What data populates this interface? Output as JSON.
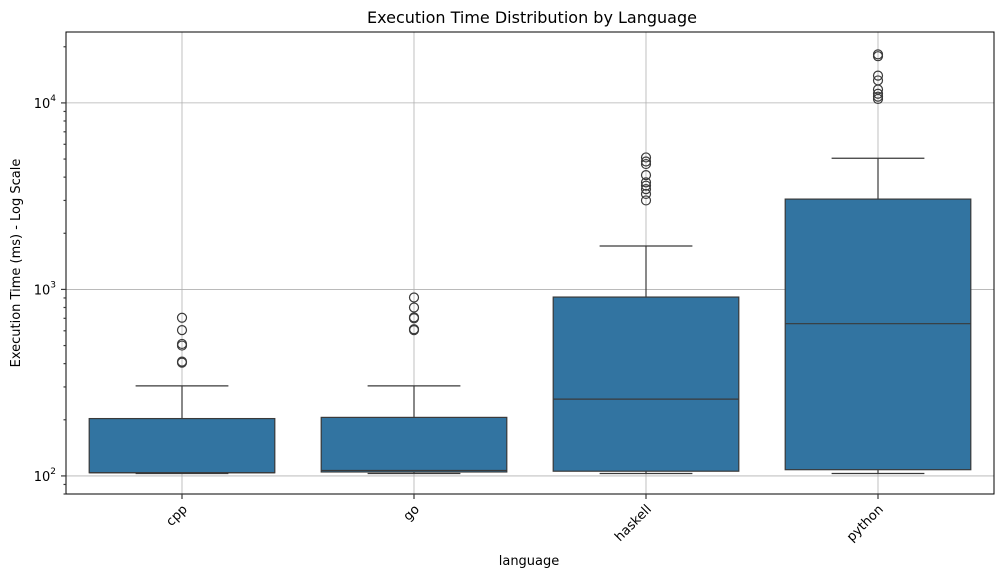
{
  "chart_data": {
    "type": "box",
    "title": "Execution Time Distribution by Language",
    "xlabel": "language",
    "ylabel": "Execution Time (ms) - Log Scale",
    "yscale": "log",
    "ylim": [
      80,
      24000
    ],
    "grid": true,
    "y_ticks": [
      {
        "value": 100,
        "base": "10",
        "exp": "2"
      },
      {
        "value": 1000,
        "base": "10",
        "exp": "3"
      },
      {
        "value": 10000,
        "base": "10",
        "exp": "4"
      }
    ],
    "color": "#3274a1",
    "categories": [
      "cpp",
      "go",
      "haskell",
      "python"
    ],
    "boxes": [
      {
        "name": "cpp",
        "whislo": 103,
        "q1": 104,
        "med": 104,
        "q3": 203,
        "whishi": 304,
        "fliers": [
          405,
          410,
          500,
          510,
          605,
          705
        ]
      },
      {
        "name": "go",
        "whislo": 103,
        "q1": 105,
        "med": 107,
        "q3": 206,
        "whishi": 304,
        "fliers": [
          605,
          612,
          700,
          708,
          800,
          905
        ]
      },
      {
        "name": "haskell",
        "whislo": 103,
        "q1": 106,
        "med": 258,
        "q3": 910,
        "whishi": 1710,
        "fliers": [
          3000,
          3250,
          3450,
          3600,
          3750,
          4100,
          4700,
          4850,
          5100
        ]
      },
      {
        "name": "python",
        "whislo": 103,
        "q1": 108,
        "med": 655,
        "q3": 3050,
        "whishi": 5050,
        "fliers": [
          10500,
          10800,
          11200,
          11800,
          13200,
          14000,
          17800,
          18200
        ]
      }
    ]
  }
}
